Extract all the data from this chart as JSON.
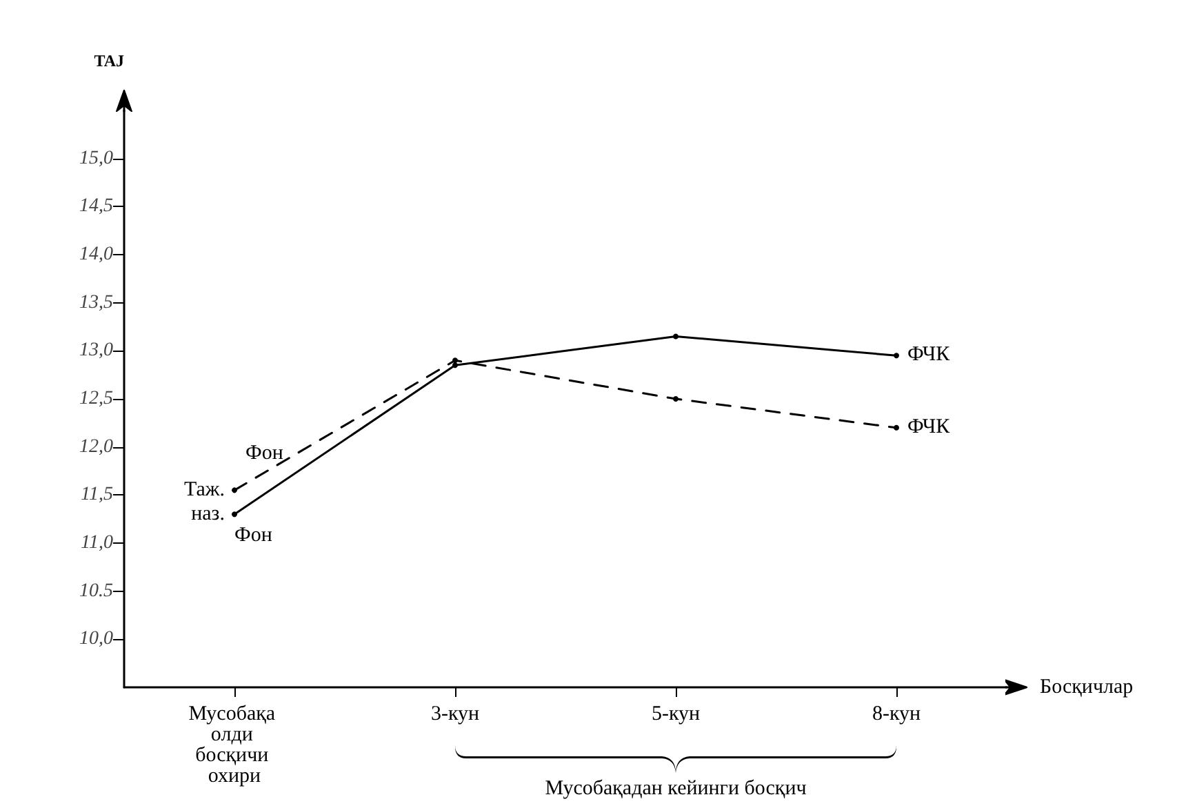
{
  "chart_data": {
    "type": "line",
    "ylabel": "TAJ",
    "xlabel": "Босқичлар",
    "categories": [
      "Мусобақа олди босқичи охири",
      "3-кун",
      "5-кун",
      "8-кун"
    ],
    "series": [
      {
        "name": "Таж.",
        "color": "#000000",
        "line_style": "dashed",
        "values": [
          11.55,
          12.9,
          12.5,
          12.2
        ]
      },
      {
        "name": "наз.",
        "color": "#000000",
        "line_style": "solid",
        "values": [
          11.3,
          12.85,
          13.15,
          12.95
        ]
      }
    ],
    "ylim": [
      9.5,
      15.5
    ],
    "yticks": [
      {
        "value": 10,
        "label": "10,0"
      },
      {
        "value": 10.5,
        "label": "10.5"
      },
      {
        "value": 11,
        "label": "11,0"
      },
      {
        "value": 11.5,
        "label": "11,5"
      },
      {
        "value": 12,
        "label": "12,0"
      },
      {
        "value": 12.5,
        "label": "12,5"
      },
      {
        "value": 13,
        "label": "13,0"
      },
      {
        "value": 13.5,
        "label": "13,5"
      },
      {
        "value": 14,
        "label": "14,0"
      },
      {
        "value": 14.5,
        "label": "14,5"
      },
      {
        "value": 15,
        "label": "15,0"
      }
    ],
    "annotations": [
      {
        "text": "Фон",
        "x": "Мусобақа олди босқичи охири",
        "y": 11.55
      },
      {
        "text": "Фон",
        "x": "Мусобақа олди босқичи охири",
        "y": 11.3
      },
      {
        "text": "ФЧК",
        "x": "8-кун",
        "y": 12.95
      },
      {
        "text": "ФЧК",
        "x": "8-кун",
        "y": 12.2
      },
      "Мусобақадан кейинги босқич"
    ],
    "marker": "circle",
    "grid": false,
    "legend": false
  }
}
